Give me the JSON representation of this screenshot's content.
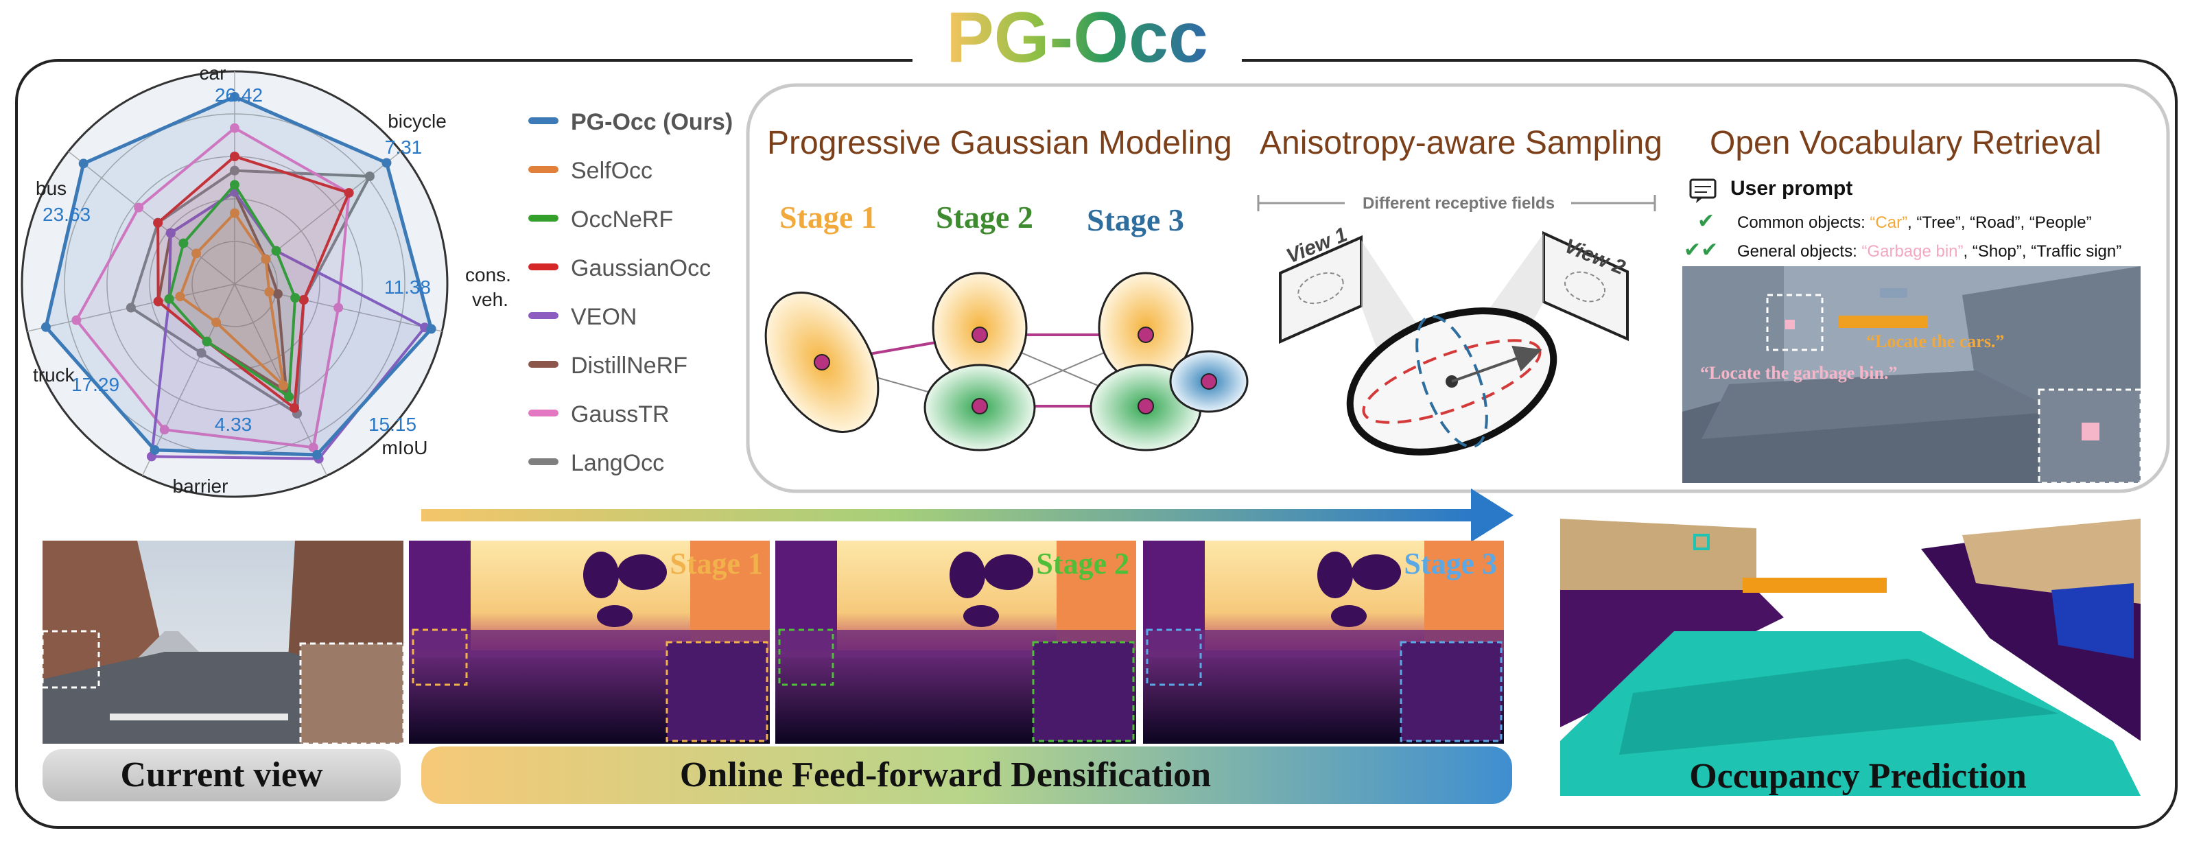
{
  "title": {
    "part1": "PG",
    "part2": "-",
    "part3": "Occ"
  },
  "radar": {
    "axes": [
      {
        "label": "car",
        "value_label": "26.42",
        "max": 30
      },
      {
        "label": "bicycle",
        "value_label": "7.31",
        "max": 8
      },
      {
        "label": "cons.",
        "label2": "veh.",
        "value_label": "11.38",
        "max": 12
      },
      {
        "label": "mIoU",
        "value_label": "15.15",
        "max": 17
      },
      {
        "label": "barrier",
        "value_label": "4.33",
        "max": 5
      },
      {
        "label": "truck",
        "value_label": "17.29",
        "max": 19
      },
      {
        "label": "bus",
        "value_label": "23.63",
        "max": 26
      }
    ],
    "legend": [
      {
        "name": "PG-Occ (Ours)",
        "color": "#3b7ab6",
        "bold": true
      },
      {
        "name": "SelfOcc",
        "color": "#e0803a"
      },
      {
        "name": "OccNeRF",
        "color": "#33a02c"
      },
      {
        "name": "GaussianOcc",
        "color": "#d62728"
      },
      {
        "name": "VEON",
        "color": "#8c5cc0"
      },
      {
        "name": "DistillNeRF",
        "color": "#8c564b"
      },
      {
        "name": "GaussTR",
        "color": "#e377c2"
      },
      {
        "name": "LangOcc",
        "color": "#7f7f7f"
      }
    ]
  },
  "chart_data": {
    "type": "radar",
    "categories": [
      "car",
      "bicycle",
      "cons. veh.",
      "mIoU",
      "barrier",
      "truck",
      "bus"
    ],
    "series": [
      {
        "name": "PG-Occ (Ours)",
        "values": [
          26.42,
          7.31,
          11.38,
          15.15,
          4.33,
          17.29,
          23.63
        ]
      },
      {
        "name": "SelfOcc",
        "values": [
          10.0,
          1.5,
          2.0,
          9.0,
          1.0,
          5.0,
          6.0
        ]
      },
      {
        "name": "OccNeRF",
        "values": [
          14.0,
          2.0,
          3.5,
          10.0,
          1.5,
          6.0,
          8.0
        ]
      },
      {
        "name": "GaussianOcc",
        "values": [
          18.0,
          5.5,
          4.0,
          11.0,
          1.5,
          7.0,
          12.0
        ]
      },
      {
        "name": "VEON",
        "values": [
          13.0,
          2.0,
          11.0,
          15.5,
          4.5,
          6.0,
          10.0
        ]
      },
      {
        "name": "DistillNeRF",
        "values": [
          13.0,
          1.5,
          2.5,
          9.5,
          1.5,
          7.0,
          10.0
        ]
      },
      {
        "name": "GaussTR",
        "values": [
          22.0,
          5.5,
          6.0,
          14.5,
          3.8,
          14.5,
          15.0
        ]
      },
      {
        "name": "LangOcc",
        "values": [
          16.0,
          6.5,
          4.0,
          11.5,
          1.8,
          9.5,
          12.0
        ]
      }
    ]
  },
  "panels": {
    "progressive": {
      "title": "Progressive Gaussian Modeling",
      "stage1": "Stage 1",
      "stage2": "Stage 2",
      "stage3": "Stage 3"
    },
    "aniso": {
      "title": "Anisotropy-aware Sampling",
      "subtitle": "Different receptive fields",
      "view1": "View 1",
      "view2": "View 2"
    },
    "openvocab": {
      "title": "Open Vocabulary Retrieval",
      "prompt_label": "User prompt",
      "common_label": "Common objects: ",
      "common_highlight": "“Car”",
      "common_rest": ", “Tree”, “Road”, “People”",
      "general_label": "General objects: ",
      "general_highlight": "“Garbage bin”",
      "general_rest": ", “Shop”, “Traffic sign”",
      "locate_cars": "“Locate the cars.”",
      "locate_bin": "“Locate the garbage bin.”"
    }
  },
  "bottom": {
    "current_view": "Current view",
    "densification": "Online Feed-forward Densification",
    "occupancy": "Occupancy Prediction",
    "stage_labels": [
      "Stage 1",
      "Stage 2",
      "Stage 3"
    ]
  },
  "colors": {
    "gold": "#f2b24b",
    "green": "#3e8a2e",
    "blue": "#2d6e9e",
    "brown_title": "#7b3f1a",
    "teal_occ": "#1ec3b2",
    "purple_occ": "#4a1263"
  }
}
